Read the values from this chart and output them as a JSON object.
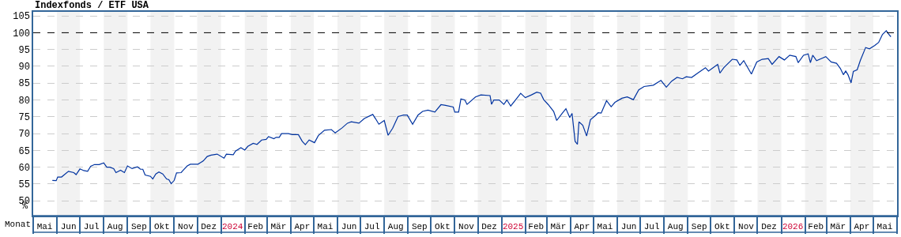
{
  "chart_data": {
    "type": "line",
    "title": "Indexfonds / ETF USA",
    "xlabel": "Monat",
    "ylabel": "%",
    "x": [
      "2023-05-26",
      "2023-05-31",
      "2023-06-02",
      "2023-06-07",
      "2023-06-16",
      "2023-06-23",
      "2023-06-26",
      "2023-07-01",
      "2023-07-06",
      "2023-07-11",
      "2023-07-15",
      "2023-07-20",
      "2023-07-26",
      "2023-08-01",
      "2023-08-05",
      "2023-08-09",
      "2023-08-14",
      "2023-08-17",
      "2023-08-23",
      "2023-08-28",
      "2023-09-01",
      "2023-09-07",
      "2023-09-14",
      "2023-09-18",
      "2023-09-21",
      "2023-09-24",
      "2023-10-01",
      "2023-10-04",
      "2023-10-08",
      "2023-10-12",
      "2023-10-17",
      "2023-10-22",
      "2023-10-25",
      "2023-10-28",
      "2023-11-01",
      "2023-11-04",
      "2023-11-10",
      "2023-11-13",
      "2023-11-18",
      "2023-11-22",
      "2023-12-02",
      "2023-12-09",
      "2023-12-14",
      "2023-12-19",
      "2023-12-27",
      "2024-01-05",
      "2024-01-08",
      "2024-01-17",
      "2024-01-20",
      "2024-01-27",
      "2024-02-01",
      "2024-02-05",
      "2024-02-12",
      "2024-02-17",
      "2024-02-23",
      "2024-02-29",
      "2024-03-03",
      "2024-03-10",
      "2024-03-13",
      "2024-03-17",
      "2024-03-20",
      "2024-03-29",
      "2024-04-03",
      "2024-04-11",
      "2024-04-16",
      "2024-04-20",
      "2024-04-25",
      "2024-05-02",
      "2024-05-07",
      "2024-05-15",
      "2024-05-24",
      "2024-05-29",
      "2024-06-07",
      "2024-06-14",
      "2024-06-19",
      "2024-06-29",
      "2024-07-06",
      "2024-07-17",
      "2024-07-21",
      "2024-07-25",
      "2024-08-01",
      "2024-08-06",
      "2024-08-12",
      "2024-08-19",
      "2024-08-26",
      "2024-08-31",
      "2024-09-07",
      "2024-09-14",
      "2024-09-20",
      "2024-09-27",
      "2024-10-06",
      "2024-10-14",
      "2024-10-20",
      "2024-10-30",
      "2024-11-01",
      "2024-11-06",
      "2024-11-09",
      "2024-11-14",
      "2024-11-17",
      "2024-11-28",
      "2024-12-05",
      "2024-12-17",
      "2024-12-19",
      "2024-12-22",
      "2024-12-29",
      "2025-01-04",
      "2025-01-08",
      "2025-01-13",
      "2025-01-21",
      "2025-01-26",
      "2025-02-01",
      "2025-02-09",
      "2025-02-16",
      "2025-02-21",
      "2025-02-25",
      "2025-03-03",
      "2025-03-10",
      "2025-03-14",
      "2025-03-21",
      "2025-03-26",
      "2025-03-31",
      "2025-04-03",
      "2025-04-07",
      "2025-04-10",
      "2025-04-12",
      "2025-04-17",
      "2025-04-22",
      "2025-04-27",
      "2025-05-04",
      "2025-05-07",
      "2025-05-11",
      "2025-05-18",
      "2025-05-24",
      "2025-05-29",
      "2025-06-07",
      "2025-06-14",
      "2025-06-22",
      "2025-06-29",
      "2025-07-06",
      "2025-07-18",
      "2025-07-28",
      "2025-08-04",
      "2025-08-11",
      "2025-08-18",
      "2025-08-25",
      "2025-08-30",
      "2025-09-06",
      "2025-09-14",
      "2025-09-24",
      "2025-09-28",
      "2025-10-10",
      "2025-10-13",
      "2025-10-18",
      "2025-10-29",
      "2025-11-04",
      "2025-11-08",
      "2025-11-13",
      "2025-11-23",
      "2025-11-30",
      "2025-12-07",
      "2025-12-15",
      "2025-12-20",
      "2025-12-29",
      "2026-01-05",
      "2026-01-12",
      "2026-01-20",
      "2026-01-23",
      "2026-01-30",
      "2026-02-05",
      "2026-02-08",
      "2026-02-11",
      "2026-02-16",
      "2026-02-28",
      "2026-03-07",
      "2026-03-14",
      "2026-03-19",
      "2026-03-23",
      "2026-03-26",
      "2026-03-29",
      "2026-04-02",
      "2026-04-05",
      "2026-04-10",
      "2026-04-14",
      "2026-04-21",
      "2026-04-26",
      "2026-05-03",
      "2026-05-08",
      "2026-05-13",
      "2026-05-18",
      "2026-05-21",
      "2026-05-24"
    ],
    "series": [
      {
        "color": "#0033a0",
        "values": [
          56.1,
          56.0,
          57.1,
          57.1,
          58.8,
          58.4,
          57.8,
          59.5,
          59.0,
          58.8,
          60.3,
          60.8,
          60.8,
          61.3,
          60.0,
          60.0,
          59.6,
          58.4,
          59.1,
          58.4,
          60.4,
          59.6,
          60.1,
          59.4,
          59.4,
          57.7,
          57.3,
          56.5,
          58.0,
          58.6,
          58.0,
          56.5,
          56.3,
          55.1,
          56.1,
          58.3,
          58.4,
          59.2,
          60.4,
          60.9,
          60.9,
          61.9,
          63.2,
          63.6,
          63.9,
          62.7,
          63.9,
          63.7,
          64.8,
          65.8,
          65.1,
          66.2,
          67.1,
          66.8,
          68.1,
          68.3,
          69.1,
          68.5,
          68.9,
          68.9,
          70.0,
          70.0,
          69.7,
          69.7,
          67.7,
          66.7,
          68.1,
          67.3,
          69.4,
          71.0,
          71.2,
          70.2,
          71.7,
          73.1,
          73.5,
          73.1,
          74.5,
          75.7,
          74.3,
          72.8,
          73.9,
          69.5,
          71.6,
          75.1,
          75.5,
          75.5,
          72.8,
          75.5,
          76.6,
          77.0,
          76.4,
          78.6,
          78.4,
          77.9,
          76.4,
          76.4,
          80.3,
          80.0,
          78.7,
          80.9,
          81.5,
          81.3,
          78.7,
          80.0,
          80.0,
          78.7,
          80.0,
          78.2,
          80.5,
          82.0,
          80.7,
          81.5,
          82.3,
          82.0,
          80.1,
          78.6,
          76.6,
          73.9,
          76.0,
          77.4,
          74.8,
          76.0,
          67.7,
          66.8,
          73.5,
          72.5,
          69.3,
          74.1,
          75.5,
          76.2,
          76.1,
          79.8,
          78.0,
          79.3,
          80.5,
          80.9,
          80.1,
          83.0,
          84.0,
          84.4,
          85.8,
          83.8,
          85.6,
          86.7,
          86.3,
          86.9,
          86.7,
          88.0,
          89.6,
          88.6,
          90.6,
          88.0,
          89.6,
          92.1,
          91.9,
          90.3,
          91.7,
          87.7,
          91.3,
          92.1,
          92.3,
          90.6,
          92.9,
          91.9,
          93.3,
          92.9,
          91.1,
          93.3,
          93.7,
          91.1,
          93.3,
          91.7,
          92.9,
          91.3,
          90.9,
          89.4,
          87.5,
          88.6,
          87.5,
          85.1,
          88.5,
          89.0,
          91.7,
          95.6,
          95.2,
          96.2,
          97.1,
          99.5,
          100.6,
          99.6,
          98.8
        ]
      }
    ],
    "xlim": [
      "2023-05-01",
      "2026-06-01"
    ],
    "xticks": [
      {
        "value": "2023-05-16",
        "label": "Mai"
      },
      {
        "value": "2023-06-16",
        "label": "Jun"
      },
      {
        "value": "2023-07-16",
        "label": "Jul"
      },
      {
        "value": "2023-08-16",
        "label": "Aug"
      },
      {
        "value": "2023-09-16",
        "label": "Sep"
      },
      {
        "value": "2023-10-16",
        "label": "Okt"
      },
      {
        "value": "2023-11-16",
        "label": "Nov"
      },
      {
        "value": "2023-12-16",
        "label": "Dez"
      },
      {
        "value": "2024-01-16",
        "label": "2024"
      },
      {
        "value": "2024-02-15",
        "label": "Feb"
      },
      {
        "value": "2024-03-16",
        "label": "Mär"
      },
      {
        "value": "2024-04-16",
        "label": "Apr"
      },
      {
        "value": "2024-05-16",
        "label": "Mai"
      },
      {
        "value": "2024-06-16",
        "label": "Jun"
      },
      {
        "value": "2024-07-16",
        "label": "Jul"
      },
      {
        "value": "2024-08-16",
        "label": "Aug"
      },
      {
        "value": "2024-09-16",
        "label": "Sep"
      },
      {
        "value": "2024-10-16",
        "label": "Okt"
      },
      {
        "value": "2024-11-16",
        "label": "Nov"
      },
      {
        "value": "2024-12-16",
        "label": "Dez"
      },
      {
        "value": "2025-01-16",
        "label": "2025"
      },
      {
        "value": "2025-02-15",
        "label": "Feb"
      },
      {
        "value": "2025-03-16",
        "label": "Mär"
      },
      {
        "value": "2025-04-16",
        "label": "Apr"
      },
      {
        "value": "2025-05-16",
        "label": "Mai"
      },
      {
        "value": "2025-06-16",
        "label": "Jun"
      },
      {
        "value": "2025-07-16",
        "label": "Jul"
      },
      {
        "value": "2025-08-16",
        "label": "Aug"
      },
      {
        "value": "2025-09-16",
        "label": "Sep"
      },
      {
        "value": "2025-10-16",
        "label": "Okt"
      },
      {
        "value": "2025-11-16",
        "label": "Nov"
      },
      {
        "value": "2025-12-16",
        "label": "Dez"
      },
      {
        "value": "2026-01-16",
        "label": "2026"
      },
      {
        "value": "2026-02-15",
        "label": "Feb"
      },
      {
        "value": "2026-03-16",
        "label": "Mär"
      },
      {
        "value": "2026-04-16",
        "label": "Apr"
      },
      {
        "value": "2026-05-16",
        "label": "Mai"
      }
    ],
    "ylim": [
      45.6,
      106.2
    ],
    "yticks": [
      50,
      55,
      60,
      65,
      70,
      75,
      80,
      85,
      90,
      95,
      100,
      105
    ],
    "grid": "y",
    "line_style": "solid",
    "ref_lines": [
      {
        "axis": "y",
        "value": 100,
        "color": "#000000",
        "line_style": "dashed"
      }
    ],
    "bands": [
      {
        "axis": "x",
        "from": "2023-06-01",
        "to": "2023-07-01",
        "color": "#f2f2f2"
      },
      {
        "axis": "x",
        "from": "2023-08-01",
        "to": "2023-09-01",
        "color": "#f2f2f2"
      },
      {
        "axis": "x",
        "from": "2023-10-01",
        "to": "2023-11-01",
        "color": "#f2f2f2"
      },
      {
        "axis": "x",
        "from": "2023-12-01",
        "to": "2024-01-01",
        "color": "#f2f2f2"
      },
      {
        "axis": "x",
        "from": "2024-02-01",
        "to": "2024-03-01",
        "color": "#f2f2f2"
      },
      {
        "axis": "x",
        "from": "2024-04-01",
        "to": "2024-05-01",
        "color": "#f2f2f2"
      },
      {
        "axis": "x",
        "from": "2024-06-01",
        "to": "2024-07-01",
        "color": "#f2f2f2"
      },
      {
        "axis": "x",
        "from": "2024-08-01",
        "to": "2024-09-01",
        "color": "#f2f2f2"
      },
      {
        "axis": "x",
        "from": "2024-10-01",
        "to": "2024-11-01",
        "color": "#f2f2f2"
      },
      {
        "axis": "x",
        "from": "2024-12-01",
        "to": "2025-01-01",
        "color": "#f2f2f2"
      },
      {
        "axis": "x",
        "from": "2025-02-01",
        "to": "2025-03-01",
        "color": "#f2f2f2"
      },
      {
        "axis": "x",
        "from": "2025-04-01",
        "to": "2025-05-01",
        "color": "#f2f2f2"
      },
      {
        "axis": "x",
        "from": "2025-06-01",
        "to": "2025-07-01",
        "color": "#f2f2f2"
      },
      {
        "axis": "x",
        "from": "2025-08-01",
        "to": "2025-09-01",
        "color": "#f2f2f2"
      },
      {
        "axis": "x",
        "from": "2025-10-01",
        "to": "2025-11-01",
        "color": "#f2f2f2"
      },
      {
        "axis": "x",
        "from": "2025-12-01",
        "to": "2026-01-01",
        "color": "#f2f2f2"
      },
      {
        "axis": "x",
        "from": "2026-02-01",
        "to": "2026-03-01",
        "color": "#f2f2f2"
      },
      {
        "axis": "x",
        "from": "2026-04-01",
        "to": "2026-05-01",
        "color": "#f2f2f2"
      }
    ]
  }
}
